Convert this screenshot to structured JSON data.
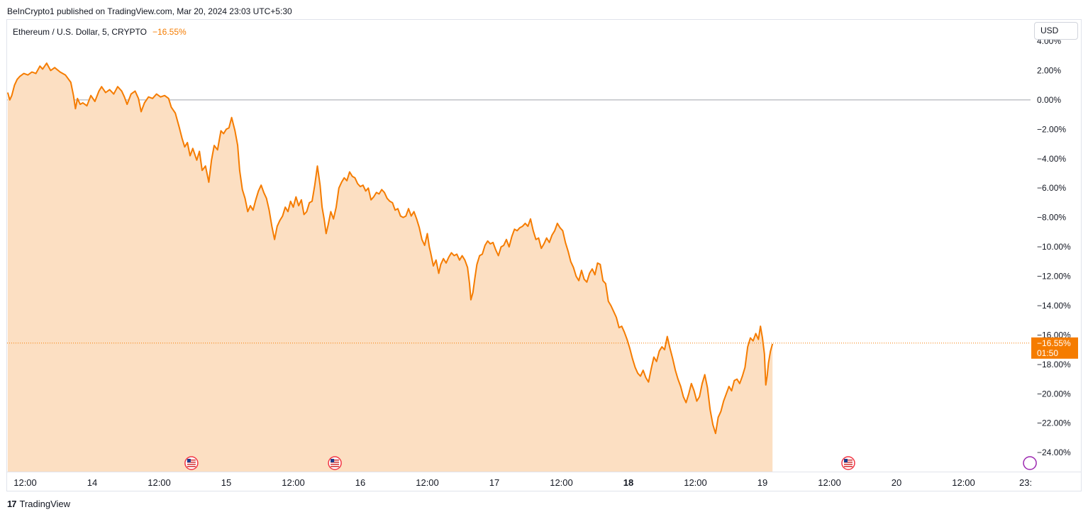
{
  "header": {
    "publish_line": "BeInCrypto1 published on TradingView.com, Mar 20, 2024 23:03 UTC+5:30"
  },
  "legend": {
    "symbol": "Ethereum / U.S. Dollar, 5, CRYPTO",
    "change": "−16.55%"
  },
  "toolbar": {
    "currency_label": "USD"
  },
  "footer": {
    "brand": "TradingView",
    "logo_mark": "17"
  },
  "price_tag": {
    "value": "−16.55%",
    "countdown": "01:50"
  },
  "colors": {
    "line": "#f57c00",
    "fill": "#fcdfc2",
    "tag_bg": "#f57c00",
    "axis_text": "#131722",
    "zero_line": "#a0a3ab"
  },
  "chart_data": {
    "type": "area",
    "y_unit": "percent change",
    "ylim": [
      -25.5,
      4.0
    ],
    "y_ticks": [
      4,
      2,
      0,
      -2,
      -4,
      -6,
      -8,
      -10,
      -12,
      -14,
      -16,
      -18,
      -20,
      -22,
      -24
    ],
    "y_tick_labels": [
      "4.00%",
      "2.00%",
      "0.00%",
      "−2.00%",
      "−4.00%",
      "−6.00%",
      "−8.00%",
      "−10.00%",
      "−12.00%",
      "−14.00%",
      "−16.00%",
      "−18.00%",
      "−20.00%",
      "−22.00%",
      "−24.00%"
    ],
    "x_ticks": [
      {
        "label": "12:00",
        "day": 13.5,
        "bold": false
      },
      {
        "label": "14",
        "day": 14.0,
        "bold": false
      },
      {
        "label": "12:00",
        "day": 14.5,
        "bold": false
      },
      {
        "label": "15",
        "day": 15.0,
        "bold": false
      },
      {
        "label": "12:00",
        "day": 15.5,
        "bold": false
      },
      {
        "label": "16",
        "day": 16.0,
        "bold": false
      },
      {
        "label": "12:00",
        "day": 16.5,
        "bold": false
      },
      {
        "label": "17",
        "day": 17.0,
        "bold": false
      },
      {
        "label": "12:00",
        "day": 17.5,
        "bold": false
      },
      {
        "label": "18",
        "day": 18.0,
        "bold": true
      },
      {
        "label": "12:00",
        "day": 18.5,
        "bold": false
      },
      {
        "label": "19",
        "day": 19.0,
        "bold": false
      },
      {
        "label": "12:00",
        "day": 19.5,
        "bold": false
      },
      {
        "label": "20",
        "day": 20.0,
        "bold": false
      },
      {
        "label": "12:00",
        "day": 20.5,
        "bold": false
      },
      {
        "label": "23:",
        "day": 20.96,
        "bold": false
      }
    ],
    "xlim": [
      13.365,
      21.0
    ],
    "last_value": -16.55,
    "event_markers": [
      {
        "day": 14.74,
        "kind": "us-flag"
      },
      {
        "day": 15.81,
        "kind": "us-flag"
      },
      {
        "day": 19.64,
        "kind": "us-flag"
      },
      {
        "day": 20.995,
        "kind": "other"
      }
    ],
    "series": [
      {
        "points": [
          [
            13.37,
            0.5
          ],
          [
            13.385,
            0.0
          ],
          [
            13.4,
            0.3
          ],
          [
            13.42,
            1.0
          ],
          [
            13.44,
            1.4
          ],
          [
            13.46,
            1.6
          ],
          [
            13.49,
            1.8
          ],
          [
            13.52,
            1.7
          ],
          [
            13.55,
            1.9
          ],
          [
            13.58,
            1.8
          ],
          [
            13.61,
            2.3
          ],
          [
            13.63,
            2.1
          ],
          [
            13.66,
            2.5
          ],
          [
            13.69,
            2.0
          ],
          [
            13.72,
            2.2
          ],
          [
            13.76,
            1.9
          ],
          [
            13.8,
            1.7
          ],
          [
            13.84,
            1.2
          ],
          [
            13.86,
            0.3
          ],
          [
            13.875,
            -0.6
          ],
          [
            13.89,
            0.1
          ],
          [
            13.91,
            -0.3
          ],
          [
            13.93,
            -0.2
          ],
          [
            13.96,
            -0.4
          ],
          [
            13.99,
            0.3
          ],
          [
            14.02,
            -0.1
          ],
          [
            14.05,
            0.6
          ],
          [
            14.07,
            0.9
          ],
          [
            14.1,
            0.5
          ],
          [
            14.13,
            0.7
          ],
          [
            14.16,
            0.4
          ],
          [
            14.19,
            0.9
          ],
          [
            14.22,
            0.6
          ],
          [
            14.24,
            0.2
          ],
          [
            14.26,
            -0.3
          ],
          [
            14.29,
            0.4
          ],
          [
            14.32,
            0.6
          ],
          [
            14.345,
            0.1
          ],
          [
            14.365,
            -0.8
          ],
          [
            14.39,
            -0.2
          ],
          [
            14.42,
            0.2
          ],
          [
            14.45,
            0.1
          ],
          [
            14.48,
            0.4
          ],
          [
            14.51,
            0.2
          ],
          [
            14.54,
            0.3
          ],
          [
            14.57,
            0.1
          ],
          [
            14.59,
            -0.5
          ],
          [
            14.62,
            -0.9
          ],
          [
            14.65,
            -1.9
          ],
          [
            14.67,
            -2.6
          ],
          [
            14.69,
            -3.2
          ],
          [
            14.71,
            -2.9
          ],
          [
            14.73,
            -3.8
          ],
          [
            14.75,
            -3.3
          ],
          [
            14.78,
            -4.1
          ],
          [
            14.8,
            -3.5
          ],
          [
            14.82,
            -4.8
          ],
          [
            14.845,
            -4.5
          ],
          [
            14.87,
            -5.6
          ],
          [
            14.89,
            -4.1
          ],
          [
            14.91,
            -3.1
          ],
          [
            14.935,
            -3.4
          ],
          [
            14.96,
            -2.1
          ],
          [
            14.98,
            -2.3
          ],
          [
            15.0,
            -2.0
          ],
          [
            15.02,
            -1.9
          ],
          [
            15.04,
            -1.2
          ],
          [
            15.065,
            -2.1
          ],
          [
            15.085,
            -3.1
          ],
          [
            15.1,
            -4.8
          ],
          [
            15.12,
            -6.1
          ],
          [
            15.14,
            -6.7
          ],
          [
            15.16,
            -7.6
          ],
          [
            15.18,
            -7.2
          ],
          [
            15.2,
            -7.5
          ],
          [
            15.22,
            -6.8
          ],
          [
            15.24,
            -6.2
          ],
          [
            15.26,
            -5.8
          ],
          [
            15.28,
            -6.3
          ],
          [
            15.3,
            -6.7
          ],
          [
            15.32,
            -7.5
          ],
          [
            15.34,
            -8.6
          ],
          [
            15.36,
            -9.5
          ],
          [
            15.38,
            -8.6
          ],
          [
            15.4,
            -8.2
          ],
          [
            15.42,
            -7.9
          ],
          [
            15.44,
            -7.3
          ],
          [
            15.46,
            -7.6
          ],
          [
            15.48,
            -6.9
          ],
          [
            15.5,
            -7.3
          ],
          [
            15.52,
            -6.6
          ],
          [
            15.54,
            -7.2
          ],
          [
            15.56,
            -6.8
          ],
          [
            15.58,
            -7.8
          ],
          [
            15.6,
            -7.6
          ],
          [
            15.62,
            -7.0
          ],
          [
            15.64,
            -6.9
          ],
          [
            15.66,
            -5.8
          ],
          [
            15.68,
            -4.5
          ],
          [
            15.7,
            -5.8
          ],
          [
            15.715,
            -7.3
          ],
          [
            15.73,
            -8.1
          ],
          [
            15.745,
            -9.1
          ],
          [
            15.76,
            -8.5
          ],
          [
            15.78,
            -7.6
          ],
          [
            15.8,
            -8.1
          ],
          [
            15.82,
            -7.3
          ],
          [
            15.84,
            -6.0
          ],
          [
            15.86,
            -5.6
          ],
          [
            15.88,
            -5.3
          ],
          [
            15.9,
            -5.5
          ],
          [
            15.92,
            -4.9
          ],
          [
            15.94,
            -5.2
          ],
          [
            15.96,
            -5.3
          ],
          [
            15.98,
            -5.7
          ],
          [
            16.0,
            -5.9
          ],
          [
            16.02,
            -5.8
          ],
          [
            16.04,
            -6.2
          ],
          [
            16.06,
            -6.0
          ],
          [
            16.08,
            -6.8
          ],
          [
            16.1,
            -6.6
          ],
          [
            16.12,
            -6.3
          ],
          [
            16.14,
            -6.4
          ],
          [
            16.16,
            -6.1
          ],
          [
            16.18,
            -6.3
          ],
          [
            16.2,
            -6.7
          ],
          [
            16.22,
            -6.9
          ],
          [
            16.24,
            -7.0
          ],
          [
            16.26,
            -7.5
          ],
          [
            16.28,
            -7.4
          ],
          [
            16.3,
            -7.9
          ],
          [
            16.32,
            -8.0
          ],
          [
            16.34,
            -7.9
          ],
          [
            16.36,
            -7.4
          ],
          [
            16.38,
            -7.9
          ],
          [
            16.4,
            -7.6
          ],
          [
            16.42,
            -8.1
          ],
          [
            16.44,
            -8.7
          ],
          [
            16.46,
            -9.5
          ],
          [
            16.48,
            -9.9
          ],
          [
            16.5,
            -9.1
          ],
          [
            16.515,
            -10.0
          ],
          [
            16.525,
            -10.4
          ],
          [
            16.545,
            -11.3
          ],
          [
            16.565,
            -10.9
          ],
          [
            16.585,
            -11.8
          ],
          [
            16.6,
            -11.2
          ],
          [
            16.62,
            -10.8
          ],
          [
            16.64,
            -11.1
          ],
          [
            16.66,
            -10.7
          ],
          [
            16.68,
            -10.4
          ],
          [
            16.7,
            -10.6
          ],
          [
            16.72,
            -10.5
          ],
          [
            16.74,
            -10.9
          ],
          [
            16.76,
            -10.6
          ],
          [
            16.78,
            -10.9
          ],
          [
            16.8,
            -11.4
          ],
          [
            16.815,
            -12.5
          ],
          [
            16.825,
            -13.6
          ],
          [
            16.84,
            -13.1
          ],
          [
            16.855,
            -12.1
          ],
          [
            16.87,
            -11.2
          ],
          [
            16.89,
            -10.6
          ],
          [
            16.91,
            -10.5
          ],
          [
            16.93,
            -9.9
          ],
          [
            16.95,
            -9.6
          ],
          [
            16.97,
            -9.8
          ],
          [
            16.99,
            -9.7
          ],
          [
            17.01,
            -10.2
          ],
          [
            17.03,
            -10.6
          ],
          [
            17.05,
            -10.0
          ],
          [
            17.07,
            -9.9
          ],
          [
            17.09,
            -9.5
          ],
          [
            17.11,
            -10.0
          ],
          [
            17.13,
            -9.3
          ],
          [
            17.15,
            -8.8
          ],
          [
            17.17,
            -8.9
          ],
          [
            17.19,
            -8.7
          ],
          [
            17.21,
            -8.6
          ],
          [
            17.23,
            -8.4
          ],
          [
            17.25,
            -8.6
          ],
          [
            17.27,
            -8.1
          ],
          [
            17.29,
            -8.9
          ],
          [
            17.31,
            -9.5
          ],
          [
            17.33,
            -9.4
          ],
          [
            17.35,
            -10.1
          ],
          [
            17.37,
            -9.8
          ],
          [
            17.39,
            -9.4
          ],
          [
            17.41,
            -9.7
          ],
          [
            17.43,
            -9.2
          ],
          [
            17.45,
            -8.9
          ],
          [
            17.47,
            -8.4
          ],
          [
            17.49,
            -8.7
          ],
          [
            17.51,
            -8.9
          ],
          [
            17.53,
            -9.7
          ],
          [
            17.55,
            -10.3
          ],
          [
            17.57,
            -11.0
          ],
          [
            17.59,
            -11.4
          ],
          [
            17.61,
            -12.0
          ],
          [
            17.63,
            -12.3
          ],
          [
            17.65,
            -11.6
          ],
          [
            17.67,
            -12.2
          ],
          [
            17.69,
            -12.4
          ],
          [
            17.71,
            -11.8
          ],
          [
            17.73,
            -11.5
          ],
          [
            17.75,
            -11.9
          ],
          [
            17.77,
            -11.1
          ],
          [
            17.79,
            -11.2
          ],
          [
            17.81,
            -12.3
          ],
          [
            17.83,
            -12.5
          ],
          [
            17.85,
            -13.7
          ],
          [
            17.87,
            -14.0
          ],
          [
            17.89,
            -14.4
          ],
          [
            17.91,
            -14.8
          ],
          [
            17.93,
            -15.5
          ],
          [
            17.95,
            -15.4
          ],
          [
            17.97,
            -15.8
          ],
          [
            17.99,
            -16.3
          ],
          [
            18.01,
            -16.9
          ],
          [
            18.03,
            -17.6
          ],
          [
            18.05,
            -18.2
          ],
          [
            18.07,
            -18.6
          ],
          [
            18.09,
            -18.8
          ],
          [
            18.11,
            -18.4
          ],
          [
            18.13,
            -18.9
          ],
          [
            18.15,
            -19.2
          ],
          [
            18.17,
            -18.3
          ],
          [
            18.19,
            -17.5
          ],
          [
            18.21,
            -17.8
          ],
          [
            18.23,
            -17.1
          ],
          [
            18.25,
            -16.8
          ],
          [
            18.27,
            -17.0
          ],
          [
            18.29,
            -16.1
          ],
          [
            18.31,
            -16.9
          ],
          [
            18.33,
            -17.6
          ],
          [
            18.35,
            -18.4
          ],
          [
            18.37,
            -19.0
          ],
          [
            18.39,
            -19.5
          ],
          [
            18.41,
            -20.2
          ],
          [
            18.43,
            -20.6
          ],
          [
            18.45,
            -20.0
          ],
          [
            18.47,
            -19.3
          ],
          [
            18.49,
            -19.8
          ],
          [
            18.51,
            -20.5
          ],
          [
            18.53,
            -20.2
          ],
          [
            18.55,
            -19.3
          ],
          [
            18.57,
            -18.7
          ],
          [
            18.59,
            -19.6
          ],
          [
            18.61,
            -21.1
          ],
          [
            18.63,
            -22.1
          ],
          [
            18.65,
            -22.7
          ],
          [
            18.67,
            -21.6
          ],
          [
            18.69,
            -21.2
          ],
          [
            18.71,
            -20.5
          ],
          [
            18.73,
            -20.0
          ],
          [
            18.75,
            -19.5
          ],
          [
            18.77,
            -19.8
          ],
          [
            18.79,
            -19.1
          ],
          [
            18.81,
            -19.0
          ],
          [
            18.83,
            -19.3
          ],
          [
            18.85,
            -18.8
          ],
          [
            18.87,
            -18.2
          ],
          [
            18.89,
            -16.8
          ],
          [
            18.91,
            -16.2
          ],
          [
            18.93,
            -16.4
          ],
          [
            18.95,
            -15.9
          ],
          [
            18.97,
            -16.3
          ],
          [
            18.985,
            -15.4
          ],
          [
            19.0,
            -16.2
          ],
          [
            19.015,
            -17.3
          ],
          [
            19.025,
            -19.4
          ],
          [
            19.035,
            -18.8
          ],
          [
            19.045,
            -17.9
          ],
          [
            19.06,
            -17.1
          ],
          [
            19.075,
            -16.6
          ]
        ]
      }
    ]
  }
}
